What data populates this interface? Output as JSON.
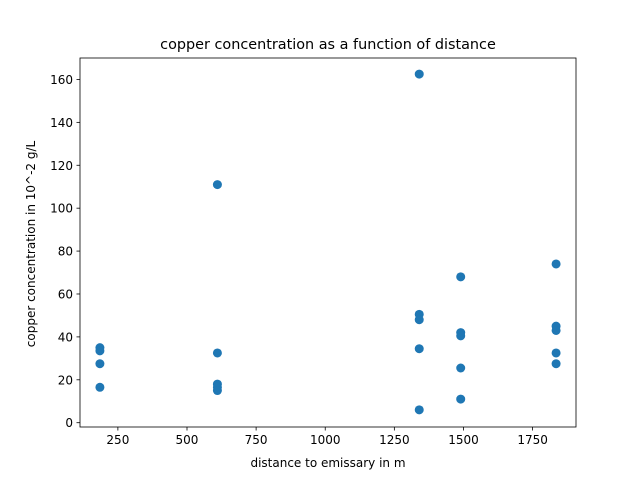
{
  "chart_data": {
    "type": "scatter",
    "title": "copper concentration as a function of distance",
    "xlabel": "distance to emissary in m",
    "ylabel": "copper concentration in 10^-2 g/L",
    "xlim": [
      113,
      1907
    ],
    "ylim": [
      -2,
      170
    ],
    "xticks": [
      250,
      500,
      750,
      1000,
      1250,
      1500,
      1750
    ],
    "xtick_labels": [
      "250",
      "500",
      "750",
      "1000",
      "1250",
      "1500",
      "1750"
    ],
    "yticks": [
      0,
      20,
      40,
      60,
      80,
      100,
      120,
      140,
      160
    ],
    "ytick_labels": [
      "0",
      "20",
      "40",
      "60",
      "80",
      "100",
      "120",
      "140",
      "160"
    ],
    "grid": false,
    "legend": "none",
    "marker_color": "#1f77b4",
    "points": [
      {
        "x": 185,
        "y": 35
      },
      {
        "x": 185,
        "y": 33.5
      },
      {
        "x": 185,
        "y": 27.5
      },
      {
        "x": 185,
        "y": 16.5
      },
      {
        "x": 610,
        "y": 111
      },
      {
        "x": 610,
        "y": 32.5
      },
      {
        "x": 610,
        "y": 18
      },
      {
        "x": 610,
        "y": 16.5
      },
      {
        "x": 610,
        "y": 15
      },
      {
        "x": 1340,
        "y": 162.5
      },
      {
        "x": 1340,
        "y": 50.5
      },
      {
        "x": 1340,
        "y": 48
      },
      {
        "x": 1340,
        "y": 34.5
      },
      {
        "x": 1340,
        "y": 6
      },
      {
        "x": 1490,
        "y": 68
      },
      {
        "x": 1490,
        "y": 42
      },
      {
        "x": 1490,
        "y": 40.5
      },
      {
        "x": 1490,
        "y": 25.5
      },
      {
        "x": 1490,
        "y": 11
      },
      {
        "x": 1835,
        "y": 74
      },
      {
        "x": 1835,
        "y": 45
      },
      {
        "x": 1835,
        "y": 43
      },
      {
        "x": 1835,
        "y": 32.5
      },
      {
        "x": 1835,
        "y": 27.5
      }
    ]
  }
}
